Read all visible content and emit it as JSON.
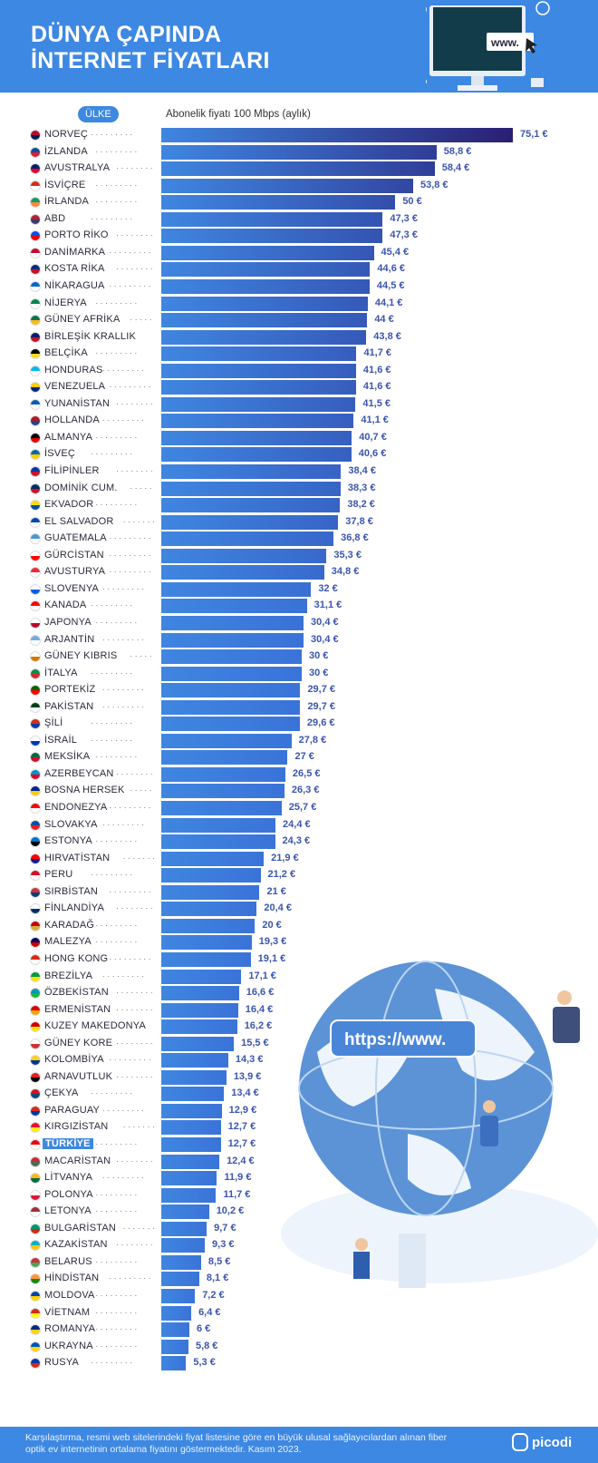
{
  "header": {
    "title_line1": "DÜNYA ÇAPINDA",
    "title_line2": "İNTERNET FİYATLARI",
    "monitor_text": "www."
  },
  "columns": {
    "country": "ÜLKE",
    "price": "Abonelik fiyatı 100 Mbps (aylık)"
  },
  "illustration": {
    "url_text": "https://www."
  },
  "footer": {
    "note": "Karşılaştırma, resmi web sitelerindeki fiyat listesine göre en büyük ulusal sağlayıcılardan alınan fiber optik ev internetinin ortalama fiyatını göstermektedir. Kasım 2023.",
    "brand": "picodi"
  },
  "colors": {
    "brand_blue": "#3d88e2",
    "bar_start": "#3f86e0",
    "bar_end_max": "#2a1f72",
    "value_text": "#3c55ad"
  },
  "chart_data": {
    "type": "bar",
    "orientation": "horizontal",
    "unit": "€",
    "highlight": "TÜRKİYE",
    "xlabel": "Abonelik fiyatı 100 Mbps (aylık)",
    "ylabel": "ÜLKE",
    "categories": [
      "NORVEÇ",
      "İZLANDA",
      "AVUSTRALYA",
      "İSVİÇRE",
      "İRLANDA",
      "ABD",
      "PORTO RİKO",
      "DANİMARKA",
      "KOSTA RİKA",
      "NİKARAGUA",
      "NİJERYA",
      "GÜNEY AFRİKA",
      "BİRLEŞİK KRALLIK",
      "BELÇİKA",
      "HONDURAS",
      "VENEZUELA",
      "YUNANİSTAN",
      "HOLLANDA",
      "ALMANYA",
      "İSVEÇ",
      "FİLİPİNLER",
      "DOMİNİK CUM.",
      "EKVADOR",
      "EL SALVADOR",
      "GUATEMALA",
      "GÜRCİSTAN",
      "AVUSTURYA",
      "SLOVENYA",
      "KANADA",
      "JAPONYA",
      "ARJANTİN",
      "GÜNEY KIBRIS",
      "İTALYA",
      "PORTEKİZ",
      "PAKİSTAN",
      "ŞİLİ",
      "İSRAİL",
      "MEKSİKA",
      "AZERBEYCAN",
      "BOSNA HERSEK",
      "ENDONEZYA",
      "SLOVAKYA",
      "ESTONYA",
      "HIRVATİSTAN",
      "PERU",
      "SIRBİSTAN",
      "FİNLANDİYA",
      "KARADAĞ",
      "MALEZYA",
      "HONG KONG",
      "BREZİLYA",
      "ÖZBEKİSTAN",
      "ERMENİSTAN",
      "KUZEY MAKEDONYA",
      "GÜNEY KORE",
      "KOLOMBİYA",
      "ARNAVUTLUK",
      "ÇEKYA",
      "PARAGUAY",
      "KIRGIZİSTAN",
      "TÜRKİYE",
      "MACARİSTAN",
      "LİTVANYA",
      "POLONYA",
      "LETONYA",
      "BULGARİSTAN",
      "KAZAKİSTAN",
      "BELARUS",
      "HİNDİSTAN",
      "MOLDOVA",
      "VİETNAM",
      "ROMANYA",
      "UKRAYNA",
      "RUSYA"
    ],
    "values": [
      75.1,
      58.8,
      58.4,
      53.8,
      50,
      47.3,
      47.3,
      45.4,
      44.6,
      44.5,
      44.1,
      44,
      43.8,
      41.7,
      41.6,
      41.6,
      41.5,
      41.1,
      40.7,
      40.6,
      38.4,
      38.3,
      38.2,
      37.8,
      36.8,
      35.3,
      34.8,
      32,
      31.1,
      30.4,
      30.4,
      30,
      30,
      29.7,
      29.7,
      29.6,
      27.8,
      27,
      26.5,
      26.3,
      25.7,
      24.4,
      24.3,
      21.9,
      21.2,
      21,
      20.4,
      20,
      19.3,
      19.1,
      17.1,
      16.6,
      16.4,
      16.2,
      15.5,
      14.3,
      13.9,
      13.4,
      12.9,
      12.7,
      12.7,
      12.4,
      11.9,
      11.7,
      10.2,
      9.7,
      9.3,
      8.5,
      8.1,
      7.2,
      6.4,
      6,
      5.8,
      5.3
    ],
    "labels": [
      "75,1 €",
      "58,8 €",
      "58,4 €",
      "53,8 €",
      "50 €",
      "47,3 €",
      "47,3 €",
      "45,4 €",
      "44,6 €",
      "44,5 €",
      "44,1 €",
      "44 €",
      "43,8 €",
      "41,7 €",
      "41,6 €",
      "41,6 €",
      "41,5 €",
      "41,1 €",
      "40,7 €",
      "40,6 €",
      "38,4 €",
      "38,3 €",
      "38,2 €",
      "37,8 €",
      "36,8 €",
      "35,3 €",
      "34,8 €",
      "32 €",
      "31,1 €",
      "30,4 €",
      "30,4 €",
      "30 €",
      "30 €",
      "29,7 €",
      "29,7 €",
      "29,6 €",
      "27,8 €",
      "27 €",
      "26,5 €",
      "26,3 €",
      "25,7 €",
      "24,4 €",
      "24,3 €",
      "21,9 €",
      "21,2 €",
      "21 €",
      "20,4 €",
      "20 €",
      "19,3 €",
      "19,1 €",
      "17,1 €",
      "16,6 €",
      "16,4 €",
      "16,2 €",
      "15,5 €",
      "14,3 €",
      "13,9 €",
      "13,4 €",
      "12,9 €",
      "12,7 €",
      "12,7 €",
      "12,4 €",
      "11,9 €",
      "11,7 €",
      "10,2 €",
      "9,7 €",
      "9,3 €",
      "8,5 €",
      "8,1 €",
      "7,2 €",
      "6,4 €",
      "6 €",
      "5,8 €",
      "5,3 €"
    ],
    "flags": [
      [
        "#ba0c2f",
        "#00205b"
      ],
      [
        "#02529c",
        "#dc1e35"
      ],
      [
        "#012169",
        "#e4002b"
      ],
      [
        "#d52b1e",
        "#fff"
      ],
      [
        "#169b62",
        "#ff883e"
      ],
      [
        "#b22234",
        "#3c3b6e"
      ],
      [
        "#0050f0",
        "#ed0000"
      ],
      [
        "#c60c30",
        "#fff"
      ],
      [
        "#002b7f",
        "#ce1126"
      ],
      [
        "#0067c6",
        "#fff"
      ],
      [
        "#008751",
        "#fff"
      ],
      [
        "#007749",
        "#ffb81c"
      ],
      [
        "#012169",
        "#c8102e"
      ],
      [
        "#000",
        "#fdda24"
      ],
      [
        "#00bce4",
        "#fff"
      ],
      [
        "#ffcc00",
        "#00247d"
      ],
      [
        "#0d5eaf",
        "#fff"
      ],
      [
        "#ae1c28",
        "#21468b"
      ],
      [
        "#000",
        "#dd0000"
      ],
      [
        "#006aa7",
        "#fecc00"
      ],
      [
        "#0038a8",
        "#ce1126"
      ],
      [
        "#002d62",
        "#ce1126"
      ],
      [
        "#ffdd00",
        "#034ea2"
      ],
      [
        "#0047ab",
        "#fff"
      ],
      [
        "#4997d0",
        "#fff"
      ],
      [
        "#fff",
        "#ff0000"
      ],
      [
        "#ed2939",
        "#fff"
      ],
      [
        "#fff",
        "#005ce6"
      ],
      [
        "#ff0000",
        "#fff"
      ],
      [
        "#fff",
        "#bc002d"
      ],
      [
        "#74acdf",
        "#fff"
      ],
      [
        "#fff",
        "#d57800"
      ],
      [
        "#009246",
        "#ce2b37"
      ],
      [
        "#006600",
        "#ff0000"
      ],
      [
        "#01411c",
        "#fff"
      ],
      [
        "#d52b1e",
        "#0039a6"
      ],
      [
        "#fff",
        "#0038b8"
      ],
      [
        "#006847",
        "#ce1126"
      ],
      [
        "#0092bc",
        "#e4002b"
      ],
      [
        "#002395",
        "#fecb00"
      ],
      [
        "#ff0000",
        "#fff"
      ],
      [
        "#0b4ea2",
        "#ee1c25"
      ],
      [
        "#0072ce",
        "#000"
      ],
      [
        "#ff0000",
        "#171796"
      ],
      [
        "#d91023",
        "#fff"
      ],
      [
        "#c6363c",
        "#0c4076"
      ],
      [
        "#fff",
        "#002f6c"
      ],
      [
        "#c40308",
        "#d4af3a"
      ],
      [
        "#010066",
        "#cc0001"
      ],
      [
        "#de2910",
        "#fff"
      ],
      [
        "#009c3b",
        "#ffdf00"
      ],
      [
        "#0099b5",
        "#1eb53a"
      ],
      [
        "#d90012",
        "#f2a800"
      ],
      [
        "#d20000",
        "#ffe600"
      ],
      [
        "#fff",
        "#cd2e3a"
      ],
      [
        "#fcd116",
        "#003893"
      ],
      [
        "#e41e20",
        "#000"
      ],
      [
        "#d7141a",
        "#11457e"
      ],
      [
        "#d52b1e",
        "#0038a8"
      ],
      [
        "#e8112d",
        "#ffef00"
      ],
      [
        "#e30a17",
        "#fff"
      ],
      [
        "#ce2939",
        "#477050"
      ],
      [
        "#fdb913",
        "#006a44"
      ],
      [
        "#fff",
        "#dc143c"
      ],
      [
        "#9e3039",
        "#fff"
      ],
      [
        "#00966e",
        "#d62612"
      ],
      [
        "#00afca",
        "#fec50c"
      ],
      [
        "#c8313e",
        "#4aa657"
      ],
      [
        "#ff9933",
        "#138808"
      ],
      [
        "#0046ae",
        "#ffd200"
      ],
      [
        "#da251d",
        "#ffff00"
      ],
      [
        "#002b7f",
        "#fcd116"
      ],
      [
        "#0057b7",
        "#ffd700"
      ],
      [
        "#0039a6",
        "#d52b1e"
      ]
    ]
  }
}
